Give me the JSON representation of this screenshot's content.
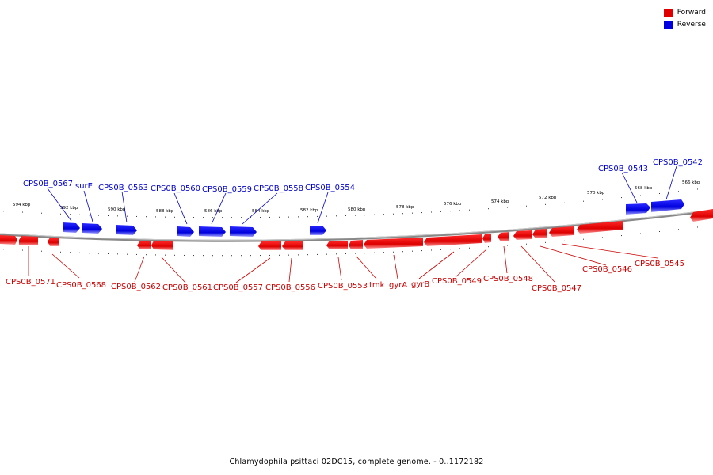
{
  "legend": {
    "forward_label": "Forward",
    "reverse_label": "Reverse",
    "forward_color": "#e00000",
    "reverse_color": "#0000e0"
  },
  "caption": "Chlamydophila psittaci 02DC15, complete genome. - 0..1172182",
  "scale": {
    "unit": "kbp",
    "labels": [
      "594 kbp",
      "592 kbp",
      "590 kbp",
      "588 kbp",
      "586 kbp",
      "584 kbp",
      "582 kbp",
      "580 kbp",
      "578 kbp",
      "576 kbp",
      "574 kbp",
      "572 kbp",
      "570 kbp",
      "568 kbp",
      "566 kbp"
    ]
  },
  "reverse_genes": [
    "CPS0B_0567",
    "surE",
    "CPS0B_0563",
    "CPS0B_0560",
    "CPS0B_0559",
    "CPS0B_0558",
    "CPS0B_0554",
    "CPS0B_0543",
    "CPS0B_0542"
  ],
  "forward_genes": [
    "CPS0B_0571",
    "CPS0B_0568",
    "CPS0B_0562",
    "CPS0B_0561",
    "CPS0B_0557",
    "CPS0B_0556",
    "CPS0B_0553",
    "tmk",
    "gyrA",
    "gyrB",
    "CPS0B_0549",
    "CPS0B_0548",
    "CPS0B_0547",
    "CPS0B_0546",
    "CPS0B_0545"
  ]
}
